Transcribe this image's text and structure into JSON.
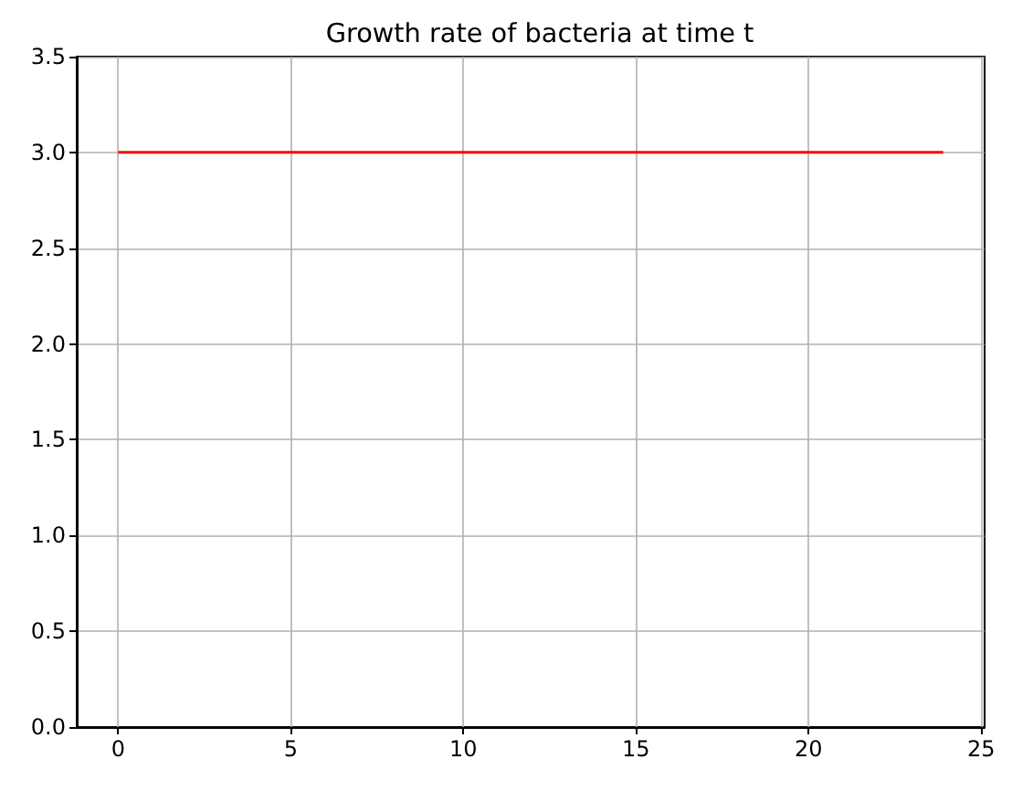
{
  "chart_data": {
    "type": "line",
    "title": "Growth rate of bacteria at time t",
    "x": [
      0,
      23.9
    ],
    "values": [
      3,
      3
    ],
    "color": "#ff0000",
    "xlim": [
      -1.2,
      25.1
    ],
    "xticks": [
      0,
      5,
      10,
      15,
      20,
      25
    ],
    "ylim": [
      0,
      3.5
    ],
    "yticks": [
      {
        "value": 0,
        "label": "0.0"
      },
      0.5,
      {
        "value": 1,
        "label": "1.0"
      },
      1.5,
      {
        "value": 2,
        "label": "2.0"
      },
      2.5,
      {
        "value": 3,
        "label": "3.0"
      },
      3.5
    ],
    "grid": true
  }
}
